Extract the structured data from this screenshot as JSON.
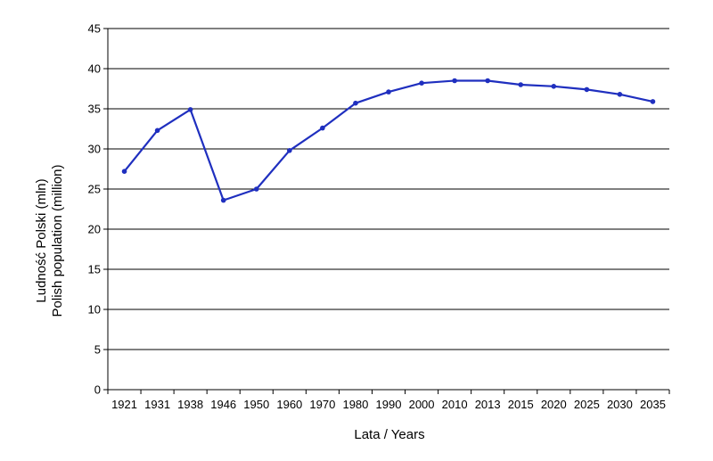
{
  "chart_data": {
    "type": "line",
    "categories": [
      "1921",
      "1931",
      "1938",
      "1946",
      "1950",
      "1960",
      "1970",
      "1980",
      "1990",
      "2000",
      "2010",
      "2013",
      "2015",
      "2020",
      "2025",
      "2030",
      "2035"
    ],
    "series": [
      {
        "values": [
          27.2,
          32.3,
          34.9,
          23.6,
          25.0,
          29.8,
          32.6,
          35.7,
          37.1,
          38.2,
          38.5,
          38.5,
          38.0,
          37.8,
          37.4,
          36.8,
          35.9
        ],
        "color": "#1f2fbf"
      }
    ],
    "xlabel": "Lata / Years",
    "ylabel": [
      "Ludność Polski (mln)",
      "Polish population (million)"
    ],
    "ylim": [
      0,
      45
    ],
    "yticks": [
      0,
      5,
      10,
      15,
      20,
      25,
      30,
      35,
      40,
      45
    ],
    "grid": "horizontal",
    "legend": "none"
  }
}
